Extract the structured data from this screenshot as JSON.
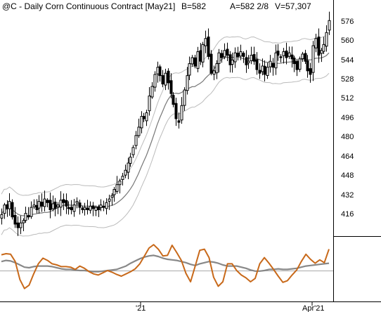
{
  "header": {
    "title": "@C - Daily  Corn Continuous Contract [May21]",
    "bid": "B=582",
    "ask_info": "A=582 2/8",
    "volume": "V=57,307"
  },
  "chart_data": {
    "type": "candlestick",
    "price_ylim": [
      402,
      588
    ],
    "price_ticks": [
      "576",
      "560",
      "544",
      "528",
      "512",
      "496",
      "480",
      "464",
      "448",
      "432",
      "416"
    ],
    "x_labels": [
      "'21",
      "Apr'21"
    ],
    "colors": {
      "candles": "#000000",
      "sma": "#777777",
      "bands": "#bbbbbb",
      "osc_fast": "#c8691a",
      "osc_slow": "#888888",
      "zero_line": "#aaaaaa"
    },
    "price_path": [
      420,
      428,
      425,
      431,
      418,
      412,
      409,
      413,
      415,
      421,
      418,
      426,
      428,
      424,
      431,
      427,
      433,
      430,
      424,
      429,
      425,
      428,
      432,
      430,
      427,
      425,
      424,
      428,
      431,
      426,
      424,
      426,
      424,
      427,
      425,
      426,
      424,
      428,
      426,
      430,
      433,
      436,
      441,
      445,
      448,
      452,
      457,
      463,
      468,
      476,
      486,
      493,
      502,
      500,
      505,
      519,
      527,
      537,
      543,
      536,
      529,
      538,
      530,
      521,
      512,
      500,
      497,
      511,
      524,
      536,
      546,
      551,
      544,
      556,
      548,
      562,
      567,
      552,
      538,
      540,
      546,
      555,
      551,
      557,
      553,
      545,
      549,
      555,
      552,
      556,
      552,
      545,
      548,
      553,
      548,
      541,
      538,
      544,
      537,
      543,
      548,
      543,
      555,
      553,
      551,
      556,
      551,
      555,
      550,
      546,
      541,
      550,
      554,
      548,
      540,
      537,
      561,
      567,
      553,
      557,
      562,
      572,
      582
    ],
    "oscillator": {
      "fast": [
        0.78,
        0.8,
        0.79,
        0.66,
        0.34,
        0.18,
        0.24,
        0.44,
        0.62,
        0.72,
        0.68,
        0.62,
        0.6,
        0.57,
        0.57,
        0.56,
        0.52,
        0.58,
        0.54,
        0.48,
        0.44,
        0.42,
        0.46,
        0.5,
        0.47,
        0.43,
        0.4,
        0.44,
        0.48,
        0.53,
        0.62,
        0.76,
        0.9,
        0.96,
        0.88,
        0.76,
        0.77,
        0.95,
        0.82,
        0.68,
        0.45,
        0.3,
        0.58,
        0.86,
        0.88,
        0.73,
        0.38,
        0.22,
        0.3,
        0.62,
        0.62,
        0.5,
        0.42,
        0.37,
        0.3,
        0.36,
        0.62,
        0.73,
        0.63,
        0.52,
        0.4,
        0.29,
        0.32,
        0.42,
        0.51,
        0.66,
        0.79,
        0.7,
        0.63,
        0.69,
        0.64,
        0.88
      ],
      "slow": [
        0.66,
        0.68,
        0.67,
        0.64,
        0.6,
        0.56,
        0.55,
        0.57,
        0.58,
        0.58,
        0.58,
        0.57,
        0.55,
        0.53,
        0.52,
        0.52,
        0.51,
        0.5,
        0.5,
        0.49,
        0.48,
        0.48,
        0.49,
        0.5,
        0.51,
        0.52,
        0.55,
        0.58,
        0.63,
        0.67,
        0.71,
        0.74,
        0.76,
        0.77,
        0.75,
        0.72,
        0.7,
        0.69,
        0.68,
        0.66,
        0.64,
        0.61,
        0.59,
        0.62,
        0.64,
        0.66,
        0.65,
        0.63,
        0.6,
        0.58,
        0.58,
        0.58,
        0.56,
        0.54,
        0.51,
        0.49,
        0.49,
        0.5,
        0.52,
        0.52,
        0.53,
        0.52,
        0.52,
        0.53,
        0.54,
        0.56,
        0.58,
        0.59,
        0.6,
        0.61,
        0.62,
        0.63
      ],
      "zero": 0.5
    }
  }
}
